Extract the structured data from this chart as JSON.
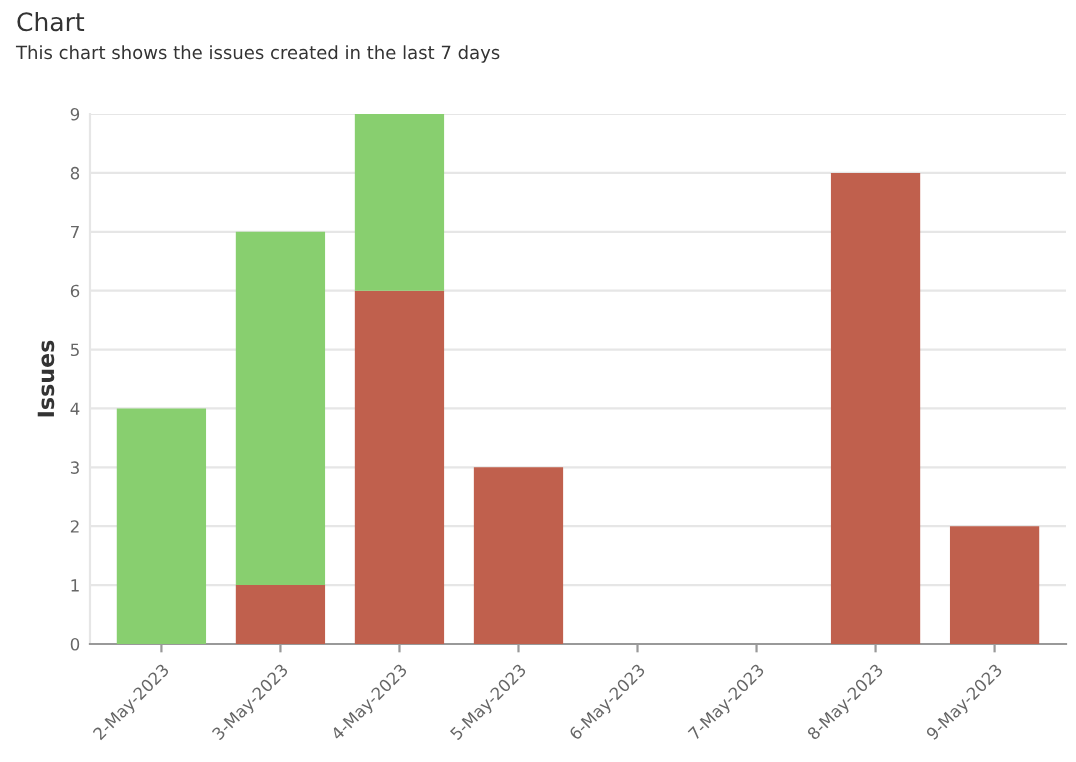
{
  "chart_data": {
    "type": "bar",
    "title": "Chart",
    "subtitle": "This chart shows the issues created in the last 7 days",
    "ylabel": "Issues",
    "categories": [
      "2-May-2023",
      "3-May-2023",
      "4-May-2023",
      "5-May-2023",
      "6-May-2023",
      "7-May-2023",
      "8-May-2023",
      "9-May-2023"
    ],
    "stacked": true,
    "series": [
      {
        "color": "#c0604d",
        "values": [
          0,
          1,
          6,
          3,
          0,
          0,
          8,
          2
        ]
      },
      {
        "color": "#88cf6f",
        "values": [
          4,
          6,
          3,
          0,
          0,
          0,
          0,
          0
        ]
      }
    ],
    "ylim": [
      0,
      9
    ],
    "yticks": [
      0,
      1,
      2,
      3,
      4,
      5,
      6,
      7,
      8,
      9
    ],
    "grid": "y"
  }
}
